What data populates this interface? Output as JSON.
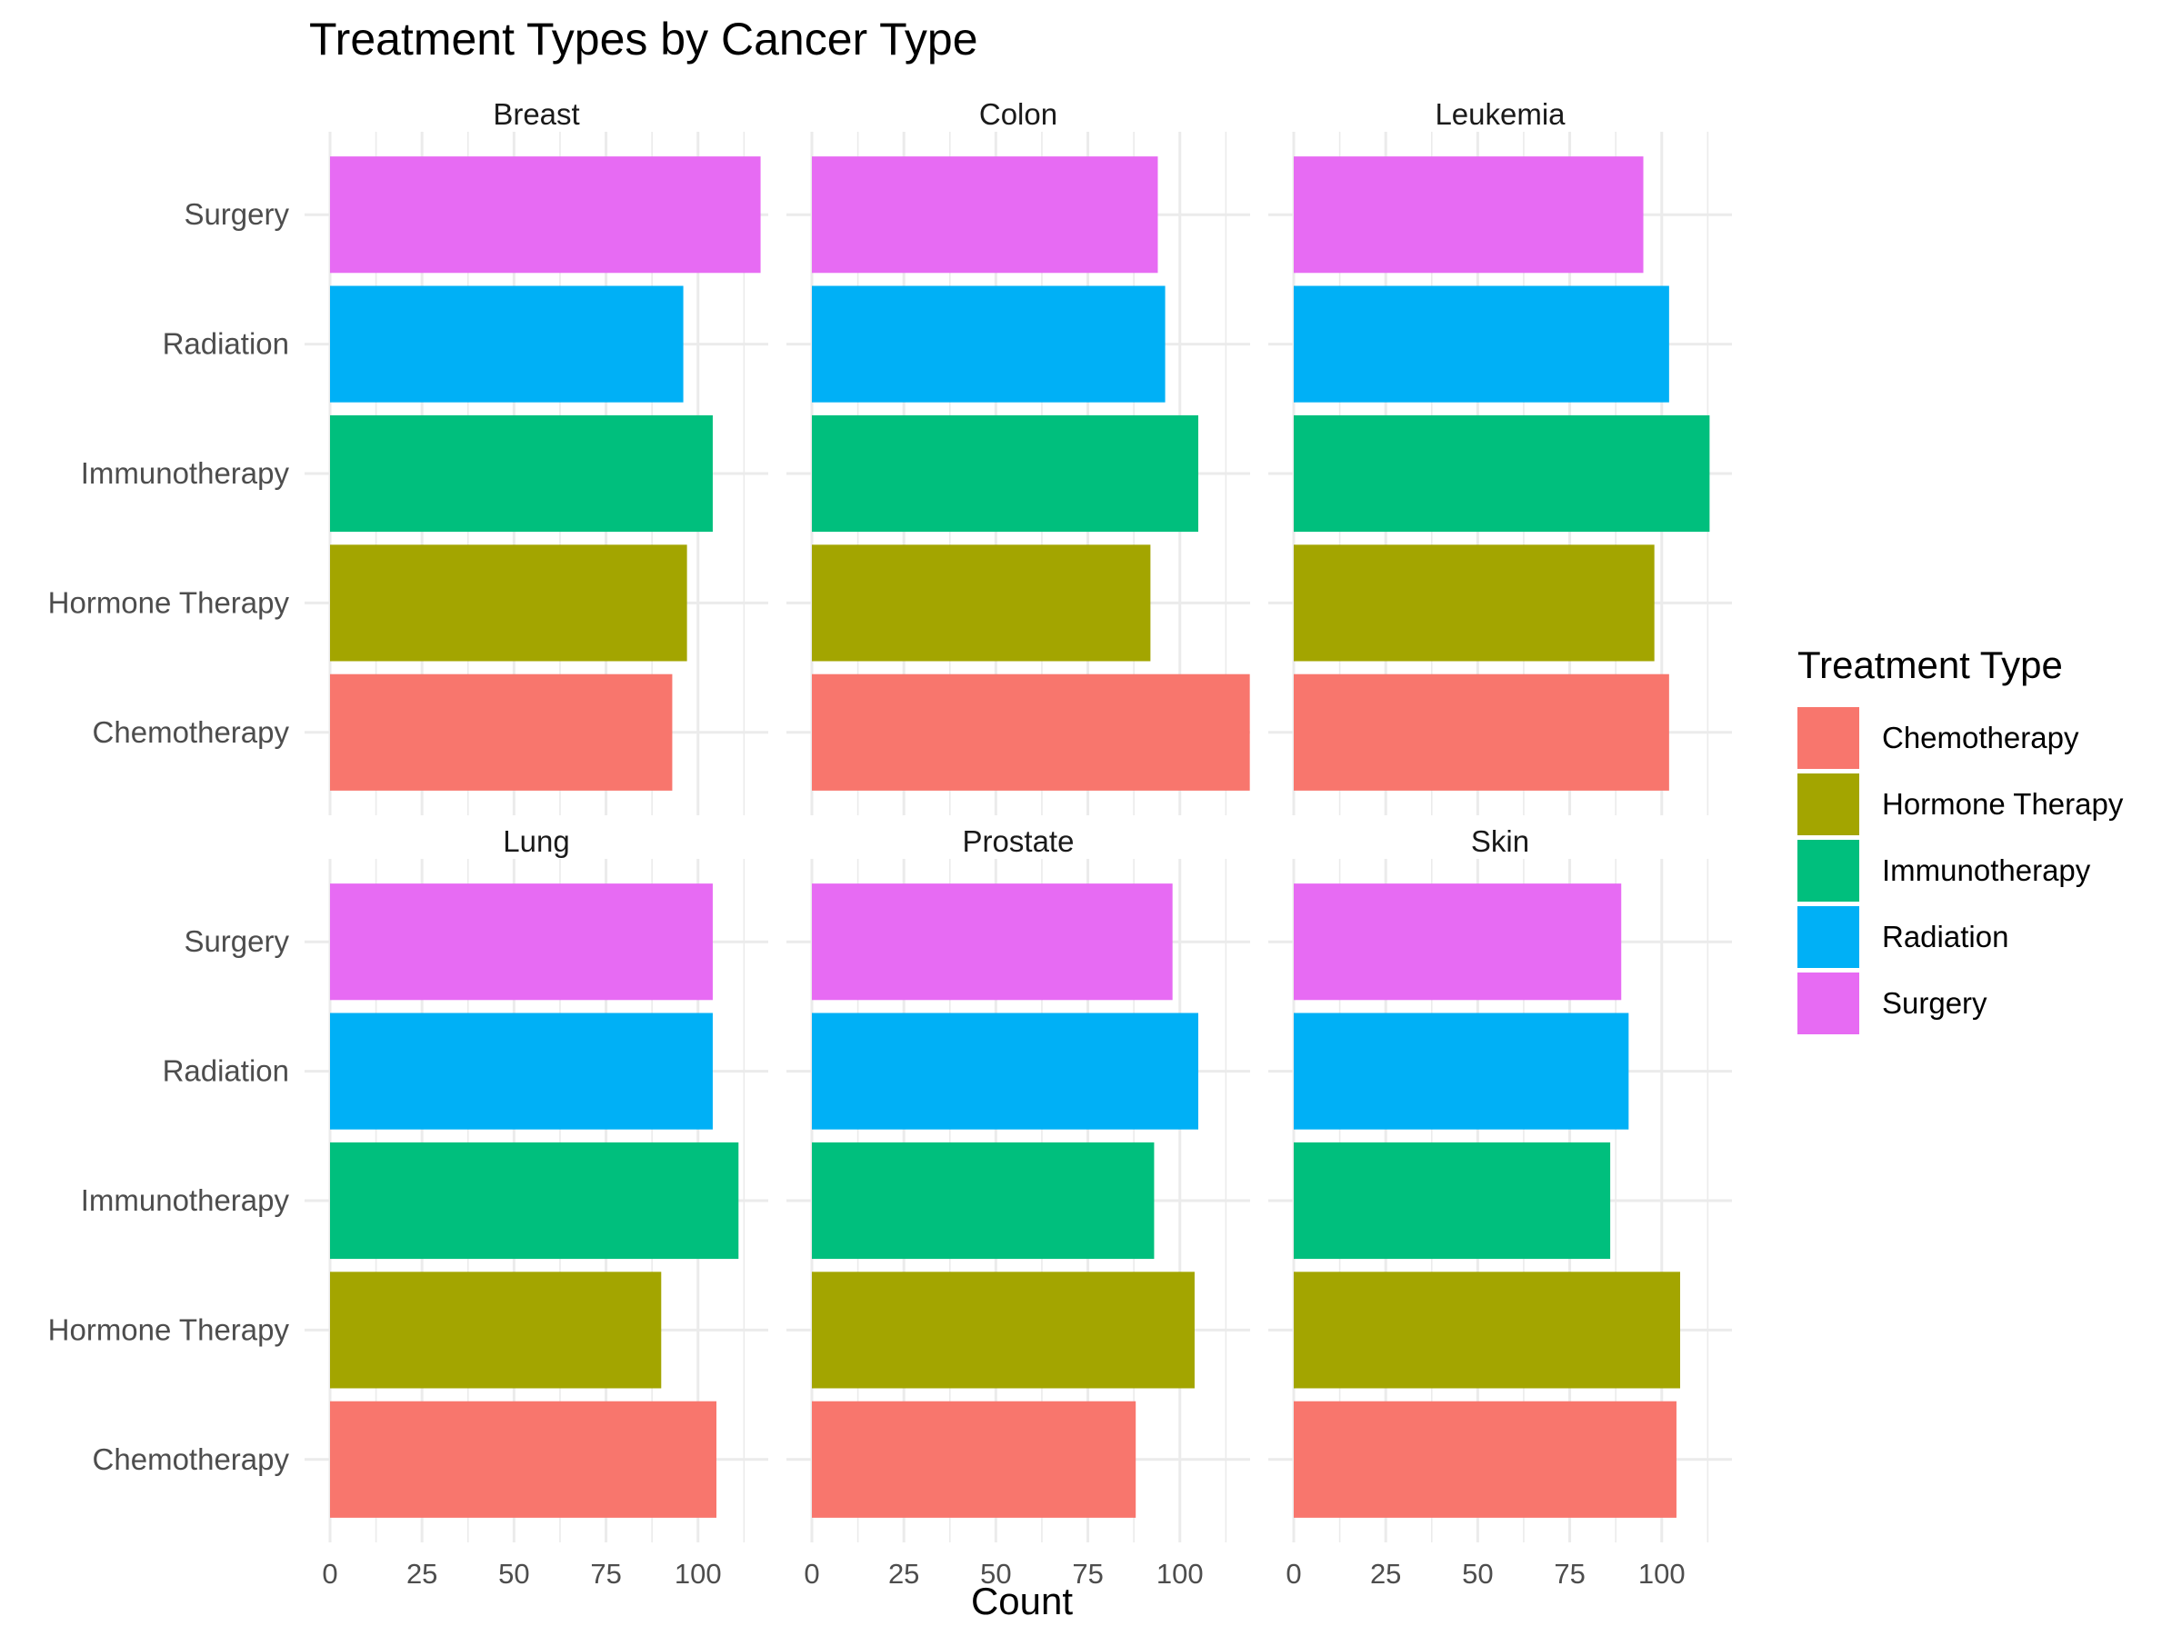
{
  "chart_data": {
    "type": "bar",
    "orientation": "horizontal",
    "title": "Treatment Types by Cancer Type",
    "xlabel": "Count",
    "ylabel": "",
    "xlim": [
      0,
      126
    ],
    "x_ticks": [
      0,
      25,
      50,
      75,
      100
    ],
    "x_tick_labels": [
      "0",
      "25",
      "50",
      "75",
      "100"
    ],
    "grid": true,
    "legend_position": "right",
    "legend_title": "Treatment Type",
    "categories": [
      "Chemotherapy",
      "Hormone Therapy",
      "Immunotherapy",
      "Radiation",
      "Surgery"
    ],
    "colors": {
      "Chemotherapy": "#F8766D",
      "Hormone Therapy": "#A3A500",
      "Immunotherapy": "#00BF7D",
      "Radiation": "#00B0F6",
      "Surgery": "#E76BF3"
    },
    "facets": [
      {
        "name": "Breast",
        "values": {
          "Chemotherapy": 93,
          "Hormone Therapy": 97,
          "Immunotherapy": 104,
          "Radiation": 96,
          "Surgery": 117
        }
      },
      {
        "name": "Colon",
        "values": {
          "Chemotherapy": 119,
          "Hormone Therapy": 92,
          "Immunotherapy": 105,
          "Radiation": 96,
          "Surgery": 94
        }
      },
      {
        "name": "Leukemia",
        "values": {
          "Chemotherapy": 102,
          "Hormone Therapy": 98,
          "Immunotherapy": 113,
          "Radiation": 102,
          "Surgery": 95
        }
      },
      {
        "name": "Lung",
        "values": {
          "Chemotherapy": 105,
          "Hormone Therapy": 90,
          "Immunotherapy": 111,
          "Radiation": 104,
          "Surgery": 104
        }
      },
      {
        "name": "Prostate",
        "values": {
          "Chemotherapy": 88,
          "Hormone Therapy": 104,
          "Immunotherapy": 93,
          "Radiation": 105,
          "Surgery": 98
        }
      },
      {
        "name": "Skin",
        "values": {
          "Chemotherapy": 104,
          "Hormone Therapy": 105,
          "Immunotherapy": 86,
          "Radiation": 91,
          "Surgery": 89
        }
      }
    ]
  }
}
